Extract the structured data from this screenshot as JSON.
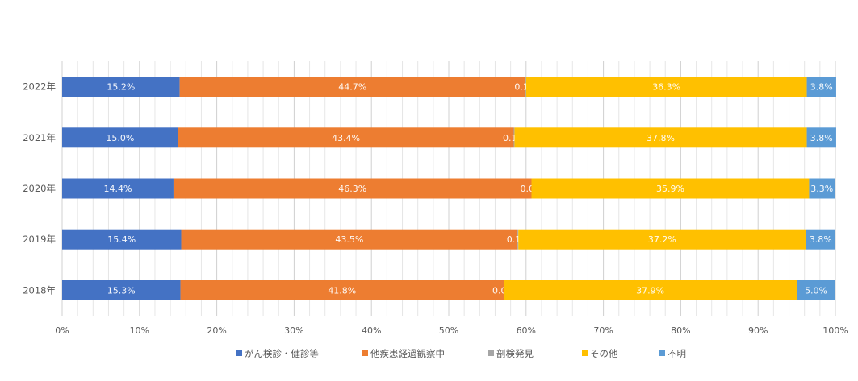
{
  "chart_data": {
    "type": "bar",
    "orientation": "horizontal",
    "stacked": "percent",
    "categories": [
      "2022年",
      "2021年",
      "2020年",
      "2019年",
      "2018年"
    ],
    "series": [
      {
        "name": "がん検診・健診等",
        "color": "#4472C4",
        "values": [
          15.2,
          15.0,
          14.4,
          15.4,
          15.3
        ],
        "labels": [
          "15.2%",
          "15.0%",
          "14.4%",
          "15.4%",
          "15.3%"
        ]
      },
      {
        "name": "他疾患経過観察中",
        "color": "#ED7D31",
        "values": [
          44.7,
          43.4,
          46.3,
          43.5,
          41.8
        ],
        "labels": [
          "44.7%",
          "43.4%",
          "46.3%",
          "43.5%",
          "41.8%"
        ]
      },
      {
        "name": "剖検発見",
        "color": "#A5A5A5",
        "values": [
          0.1,
          0.1,
          0.0,
          0.1,
          0.0
        ],
        "labels": [
          "0.1%",
          "0.1%",
          "0.0%",
          "0.1%",
          "0.0%"
        ]
      },
      {
        "name": "その他",
        "color": "#FFC000",
        "values": [
          36.3,
          37.8,
          35.9,
          37.2,
          37.9
        ],
        "labels": [
          "36.3%",
          "37.8%",
          "35.9%",
          "37.2%",
          "37.9%"
        ]
      },
      {
        "name": "不明",
        "color": "#5B9BD5",
        "values": [
          3.8,
          3.8,
          3.3,
          3.8,
          5.0
        ],
        "labels": [
          "3.8%",
          "3.8%",
          "3.3%",
          "3.8%",
          "5.0%"
        ]
      }
    ],
    "x_ticks": [
      "0%",
      "10%",
      "20%",
      "30%",
      "40%",
      "50%",
      "60%",
      "70%",
      "80%",
      "90%",
      "100%"
    ],
    "xlim": [
      0,
      100
    ],
    "grid": true,
    "legend_position": "bottom"
  }
}
